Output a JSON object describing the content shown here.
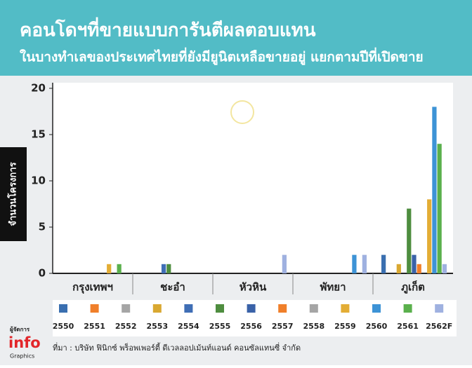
{
  "chart_data": {
    "type": "bar",
    "title": "คอนโดฯที่ขายแบบการันตีผลตอบแทน",
    "subtitle": "ในบางทำเลของประเทศไทยที่ยังมียูนิตเหลือขายอยู่ แยกตามปีที่เปิดขาย",
    "y_label": "จำนวนโครงการ",
    "categories": [
      "กรุงเทพฯ",
      "ชะอำ",
      "หัวหิน",
      "พัทยา",
      "ภูเก็ต"
    ],
    "series": [
      {
        "name": "2550",
        "color": "#3a6fb0",
        "values": [
          0,
          0,
          0,
          0,
          2
        ]
      },
      {
        "name": "2551",
        "color": "#f07f2a",
        "values": [
          0,
          0,
          0,
          0,
          0
        ]
      },
      {
        "name": "2552",
        "color": "#a5a5a5",
        "values": [
          0,
          0,
          0,
          0,
          0
        ]
      },
      {
        "name": "2553",
        "color": "#d9a831",
        "values": [
          0,
          0,
          0,
          0,
          1
        ]
      },
      {
        "name": "2554",
        "color": "#3f6eb5",
        "values": [
          0,
          1,
          0,
          0,
          0
        ]
      },
      {
        "name": "2555",
        "color": "#4e8d3f",
        "values": [
          0,
          1,
          0,
          0,
          7
        ]
      },
      {
        "name": "2556",
        "color": "#3a62a8",
        "values": [
          0,
          0,
          0,
          0,
          2
        ]
      },
      {
        "name": "2557",
        "color": "#f07f2a",
        "values": [
          0,
          0,
          0,
          0,
          1
        ]
      },
      {
        "name": "2558",
        "color": "#a5a5a5",
        "values": [
          0,
          0,
          0,
          0,
          0
        ]
      },
      {
        "name": "2559",
        "color": "#e3ad35",
        "values": [
          1,
          0,
          0,
          0,
          8
        ]
      },
      {
        "name": "2560",
        "color": "#3d93d6",
        "values": [
          0,
          0,
          0,
          2,
          18
        ]
      },
      {
        "name": "2561",
        "color": "#5ab04c",
        "values": [
          1,
          0,
          0,
          0,
          14
        ]
      },
      {
        "name": "2562F",
        "color": "#9fb1e0",
        "values": [
          0,
          0,
          2,
          2,
          1
        ]
      }
    ],
    "ylim": [
      0,
      20
    ],
    "yticks": [
      0,
      5,
      10,
      15,
      20
    ],
    "source": "ที่มา : บริษัท ฟินิกซ์ พร็อพเพอร์ตี้ ดีเวลลอปเม้นท์แอนด์ คอนซัลแทนซี่ จำกัด",
    "logo": {
      "brand": "ผู้จัดการ",
      "name": "info",
      "sub": "Graphics"
    }
  }
}
